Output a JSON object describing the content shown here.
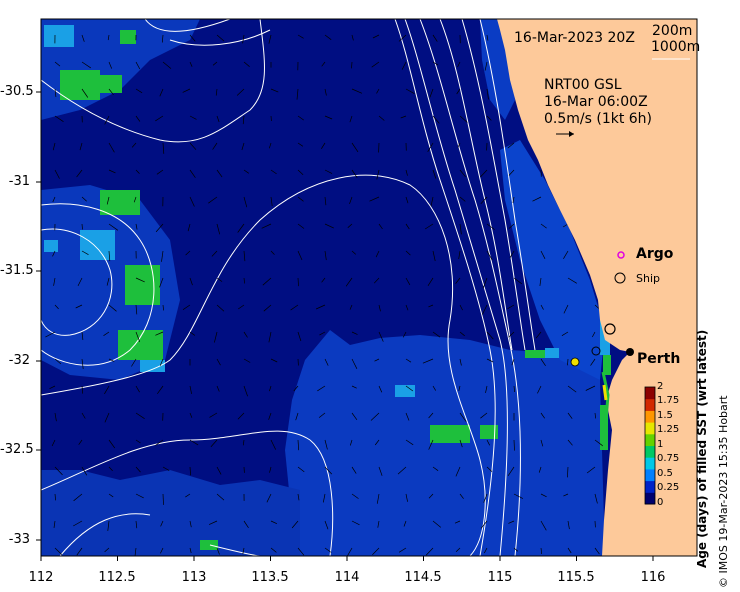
{
  "map": {
    "title_date": "16-Mar-2023 20Z",
    "contours": {
      "shallow": "200m",
      "deep": "1000m"
    },
    "current_model": "NRT00 GSL",
    "current_time": "16-Mar 06:00Z",
    "current_scale": "0.5m/s (1kt 6h)",
    "places": {
      "argo": "Argo",
      "ship": "Ship",
      "city": "Perth"
    },
    "lon_range": [
      112,
      116.3
    ],
    "lat_range": [
      -33.1,
      -30.1
    ],
    "coast_lon": 115.7
  },
  "axes": {
    "x_ticks": [
      "112",
      "112.5",
      "113",
      "113.5",
      "114",
      "114.5",
      "115",
      "115.5",
      "116"
    ],
    "y_ticks": [
      "-30.5",
      "-31",
      "-31.5",
      "-32",
      "-32.5",
      "-33"
    ]
  },
  "colorbar": {
    "label": "Age (days) of filled SST (wrt latest)",
    "ticks": [
      "2",
      "1.75",
      "1.5",
      "1.25",
      "1",
      "0.75",
      "0.5",
      "0.25",
      "0"
    ],
    "colors": [
      "#00006e",
      "#0022c8",
      "#0080ff",
      "#00c8e6",
      "#00c864",
      "#64d200",
      "#e6e600",
      "#ff9600",
      "#d22800",
      "#8c0000"
    ]
  },
  "credit": "© IMOS 19-Mar-2023 15:35 Hobart",
  "colors": {
    "land": "#fdc99a",
    "water": "#000e82",
    "patch": "#0a3cc8",
    "green": "#1ebf3c",
    "cyan": "#1aa0e6"
  }
}
